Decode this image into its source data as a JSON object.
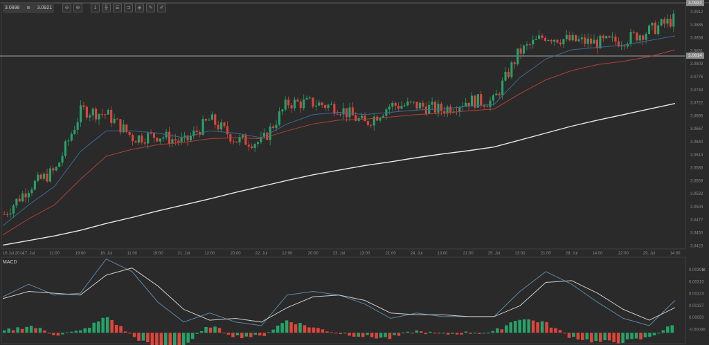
{
  "toolbar": {
    "bid": "3.0898",
    "ask": "3.0921",
    "buttons": [
      {
        "name": "zoom-out-icon",
        "glyph": "⊖"
      },
      {
        "name": "zoom-in-icon",
        "glyph": "⊕"
      },
      {
        "name": "timeframe-icon",
        "glyph": "1"
      },
      {
        "name": "chart-type-icon",
        "glyph": "╫"
      },
      {
        "name": "indicators-icon",
        "glyph": "☰"
      },
      {
        "name": "templates-icon",
        "glyph": "⊐"
      },
      {
        "name": "objects-icon",
        "glyph": "◈"
      },
      {
        "name": "edit-icon",
        "glyph": "✎"
      },
      {
        "name": "draw-icon",
        "glyph": "✐"
      }
    ]
  },
  "price_axis": {
    "current_top_tag": "3.0932",
    "line_tag": "3.0814",
    "ticks": [
      "3.0912",
      "3.0885",
      "3.0858",
      "3.0831",
      "3.0803",
      "3.0776",
      "3.0749",
      "3.0722",
      "3.0695",
      "3.0667",
      "3.0640",
      "3.0613",
      "3.0586",
      "3.0559",
      "3.0532",
      "3.0504",
      "3.0477",
      "3.0450",
      "3.0423"
    ]
  },
  "time_axis": {
    "labels": [
      "16 Jul 2014",
      "17. Jul",
      "11:00",
      "19:00",
      "18. Jul",
      "11:00",
      "19:00",
      "21. Jul",
      "12:00",
      "20:00",
      "22. Jul",
      "12:00",
      "20:00",
      "23. Jul",
      "13:00",
      "21:00",
      "24. Jul",
      "13:00",
      "21:00",
      "25. Jul",
      "13:00",
      "21:00",
      "28. Jul",
      "14:00",
      "22:00",
      "29. Jul",
      "14:00"
    ]
  },
  "macd": {
    "title": "MACD",
    "ticks": [
      "0.00396",
      "0.00310",
      "0.00223",
      "0.00137",
      "0.00050",
      "-0.00036"
    ],
    "close_glyph": "✕"
  },
  "colors": {
    "background": "#2a2a2a",
    "up": "#26a269",
    "down": "#e0443a",
    "ema_fast": "#3d6a92",
    "ema_slow": "#b0413a",
    "sma_long": "#e8e8e8",
    "macd_line": "#5a8aa8",
    "signal_line": "#cccccc",
    "grid": "#444444"
  },
  "chart_data": [
    {
      "type": "candlestick",
      "title": "Price chart (hourly)",
      "xlabel": "Time",
      "ylabel": "Price",
      "ylim": [
        3.041,
        3.094
      ],
      "horizontal_line": 3.0814,
      "last_price": 3.0932,
      "x": [
        "16 Jul 2014",
        "17. Jul",
        "11:00",
        "19:00",
        "18. Jul",
        "11:00",
        "19:00",
        "21. Jul",
        "12:00",
        "20:00",
        "22. Jul",
        "12:00",
        "20:00",
        "23. Jul",
        "13:00",
        "21:00",
        "24. Jul",
        "13:00",
        "21:00",
        "25. Jul",
        "13:00",
        "21:00",
        "28. Jul",
        "14:00",
        "22:00",
        "29. Jul",
        "14:00"
      ],
      "close_approx": [
        3.0485,
        3.0545,
        3.058,
        3.071,
        3.07,
        3.065,
        3.0655,
        3.064,
        3.069,
        3.0645,
        3.064,
        3.0725,
        3.0725,
        3.0715,
        3.068,
        3.072,
        3.072,
        3.071,
        3.073,
        3.0728,
        3.0835,
        3.087,
        3.086,
        3.0855,
        3.086,
        3.088,
        3.0905
      ],
      "series": [
        {
          "name": "EMA fast (blue)",
          "values": [
            3.046,
            3.0505,
            3.0545,
            3.062,
            3.0665,
            3.0665,
            3.066,
            3.065,
            3.0665,
            3.066,
            3.065,
            3.068,
            3.07,
            3.0705,
            3.07,
            3.0705,
            3.071,
            3.0712,
            3.0718,
            3.0722,
            3.078,
            3.082,
            3.084,
            3.0845,
            3.085,
            3.086,
            3.087
          ]
        },
        {
          "name": "EMA slow (red)",
          "values": [
            3.044,
            3.0475,
            3.0505,
            3.056,
            3.061,
            3.0625,
            3.0635,
            3.064,
            3.0648,
            3.065,
            3.0648,
            3.0665,
            3.068,
            3.0688,
            3.069,
            3.0695,
            3.07,
            3.0703,
            3.0708,
            3.0712,
            3.0745,
            3.0775,
            3.0795,
            3.0808,
            3.0815,
            3.0825,
            3.084
          ]
        },
        {
          "name": "SMA long (white)",
          "values": [
            3.0418,
            3.0428,
            3.0438,
            3.045,
            3.0465,
            3.0478,
            3.0492,
            3.0505,
            3.0518,
            3.0532,
            3.0545,
            3.0558,
            3.057,
            3.058,
            3.059,
            3.0598,
            3.0607,
            3.0615,
            3.0622,
            3.063,
            3.0645,
            3.066,
            3.0675,
            3.0688,
            3.07,
            3.0712,
            3.0724
          ]
        }
      ]
    },
    {
      "type": "bar+line",
      "title": "MACD",
      "ylim": [
        -0.0006,
        0.0042
      ],
      "x": [
        "16 Jul 2014",
        "17. Jul",
        "11:00",
        "19:00",
        "18. Jul",
        "11:00",
        "19:00",
        "21. Jul",
        "12:00",
        "20:00",
        "22. Jul",
        "12:00",
        "20:00",
        "23. Jul",
        "13:00",
        "21:00",
        "24. Jul",
        "13:00",
        "21:00",
        "25. Jul",
        "13:00",
        "21:00",
        "28. Jul",
        "14:00",
        "22:00",
        "29. Jul",
        "14:00"
      ],
      "series": [
        {
          "name": "MACD",
          "values": [
            0.002,
            0.0027,
            0.0021,
            0.0022,
            0.0041,
            0.0034,
            0.0017,
            0.0006,
            0.0011,
            0.0006,
            0.0004,
            0.0021,
            0.0023,
            0.0021,
            0.0016,
            0.0008,
            0.0011,
            0.0009,
            0.0009,
            0.0009,
            0.0023,
            0.0034,
            0.0027,
            0.0017,
            0.0008,
            0.0004,
            0.0018
          ]
        },
        {
          "name": "Signal",
          "values": [
            0.0019,
            0.0023,
            0.0022,
            0.0021,
            0.0032,
            0.0036,
            0.0026,
            0.0013,
            0.0007,
            0.0008,
            0.0006,
            0.0014,
            0.002,
            0.0021,
            0.0018,
            0.0011,
            0.001,
            0.001,
            0.0009,
            0.0009,
            0.0015,
            0.0028,
            0.0029,
            0.0022,
            0.0013,
            0.0007,
            0.0014
          ]
        },
        {
          "name": "Histogram",
          "values": [
            0.0001,
            0.0004,
            -0.0001,
            0.0001,
            0.0009,
            -0.0002,
            -0.0009,
            -0.0007,
            0.0004,
            -0.0002,
            -0.0002,
            0.0007,
            0.0003,
            0.0,
            -0.0002,
            -0.0003,
            0.0001,
            -0.0001,
            0.0,
            0.0,
            0.0008,
            0.0006,
            -0.0002,
            -0.0005,
            -0.0005,
            -0.0003,
            0.0004
          ]
        }
      ]
    }
  ]
}
